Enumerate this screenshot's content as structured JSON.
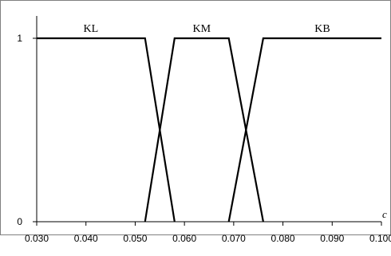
{
  "chart_data": {
    "type": "line",
    "xlabel": "c",
    "ylabel": "",
    "xlim": [
      0.03,
      0.1
    ],
    "ylim": [
      0,
      1
    ],
    "x_ticks": [
      "0.030",
      "0.040",
      "0.050",
      "0.060",
      "0.070",
      "0.080",
      "0.090",
      "0.100"
    ],
    "y_ticks": [
      "0",
      "1"
    ],
    "grid": false,
    "series": [
      {
        "name": "KL",
        "x": [
          0.03,
          0.052,
          0.058
        ],
        "y": [
          1,
          1,
          0
        ]
      },
      {
        "name": "KM",
        "x": [
          0.052,
          0.058,
          0.069,
          0.076
        ],
        "y": [
          0,
          1,
          1,
          0
        ]
      },
      {
        "name": "KB",
        "x": [
          0.069,
          0.076,
          0.1
        ],
        "y": [
          0,
          1,
          1
        ]
      }
    ]
  }
}
